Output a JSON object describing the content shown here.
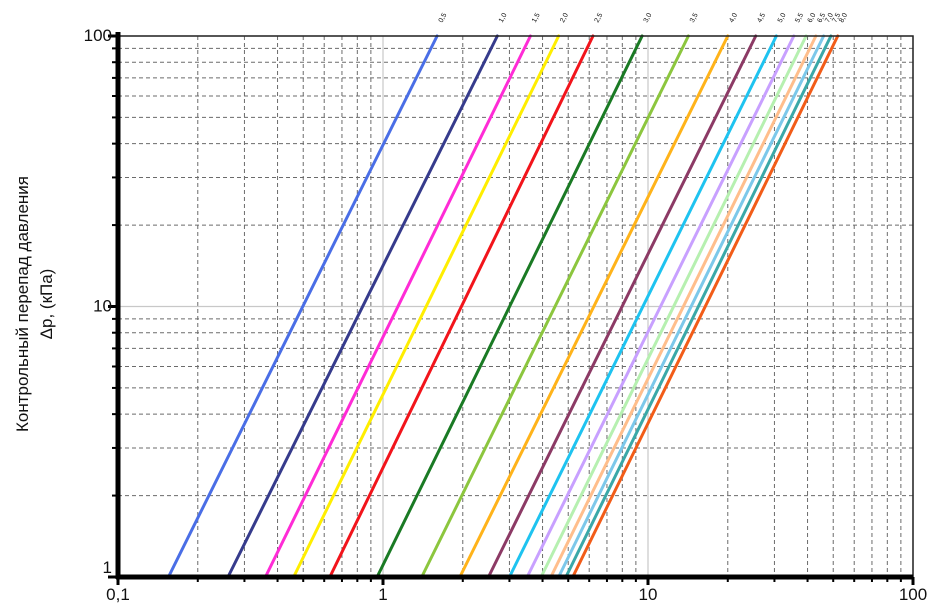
{
  "chart_data": {
    "type": "line",
    "x_scale": "log",
    "y_scale": "log",
    "xlim": [
      0.1,
      100
    ],
    "ylim": [
      1,
      100
    ],
    "x_ticks": [
      {
        "value": 0.1,
        "label": "0,1"
      },
      {
        "value": 1,
        "label": "1"
      },
      {
        "value": 10,
        "label": "10"
      },
      {
        "value": 100,
        "label": "100"
      }
    ],
    "y_ticks": [
      {
        "value": 1,
        "label": "1"
      },
      {
        "value": 10,
        "label": "10"
      },
      {
        "value": 100,
        "label": "100"
      }
    ],
    "ylabel_lines": [
      "Контрольный перепад давления",
      "Δp, (кПа)"
    ],
    "xlabel": "",
    "grid": true,
    "series": [
      {
        "name": "0,5",
        "color": "#4a6ee6",
        "x": [
          0.155,
          1.6
        ],
        "y": [
          1,
          100
        ]
      },
      {
        "name": "1,0",
        "color": "#363b8c",
        "x": [
          0.26,
          2.7
        ],
        "y": [
          1,
          100
        ]
      },
      {
        "name": "1,5",
        "color": "#ff2bd6",
        "x": [
          0.36,
          3.6
        ],
        "y": [
          1,
          100
        ]
      },
      {
        "name": "2,0",
        "color": "#ffee00",
        "x": [
          0.46,
          4.6
        ],
        "y": [
          1,
          100
        ]
      },
      {
        "name": "2,5",
        "color": "#f2141b",
        "x": [
          0.63,
          6.2
        ],
        "y": [
          1,
          100
        ]
      },
      {
        "name": "3,0",
        "color": "#1a7a24",
        "x": [
          0.95,
          9.5
        ],
        "y": [
          1,
          100
        ]
      },
      {
        "name": "3,5",
        "color": "#8cc63e",
        "x": [
          1.4,
          14.2
        ],
        "y": [
          1,
          100
        ]
      },
      {
        "name": "4,0",
        "color": "#ffb31a",
        "x": [
          1.95,
          20
        ],
        "y": [
          1,
          100
        ]
      },
      {
        "name": "4,5",
        "color": "#8c3a65",
        "x": [
          2.5,
          25.5
        ],
        "y": [
          1,
          100
        ]
      },
      {
        "name": "5,0",
        "color": "#1ec3f0",
        "x": [
          3.0,
          30.5
        ],
        "y": [
          1,
          100
        ]
      },
      {
        "name": "5,5",
        "color": "#c8a0ff",
        "x": [
          3.5,
          35.5
        ],
        "y": [
          1,
          100
        ]
      },
      {
        "name": "6,0",
        "color": "#b6f0b0",
        "x": [
          3.95,
          39.5
        ],
        "y": [
          1,
          100
        ]
      },
      {
        "name": "6,5",
        "color": "#ffbe8c",
        "x": [
          4.3,
          43
        ],
        "y": [
          1,
          100
        ]
      },
      {
        "name": "7,0",
        "color": "#7cc8ea",
        "x": [
          4.6,
          46
        ],
        "y": [
          1,
          100
        ]
      },
      {
        "name": "7,5",
        "color": "#3aa8a8",
        "x": [
          4.9,
          49
        ],
        "y": [
          1,
          100
        ]
      },
      {
        "name": "8,0",
        "color": "#f25c18",
        "x": [
          5.2,
          52
        ],
        "y": [
          1,
          100
        ]
      }
    ]
  }
}
